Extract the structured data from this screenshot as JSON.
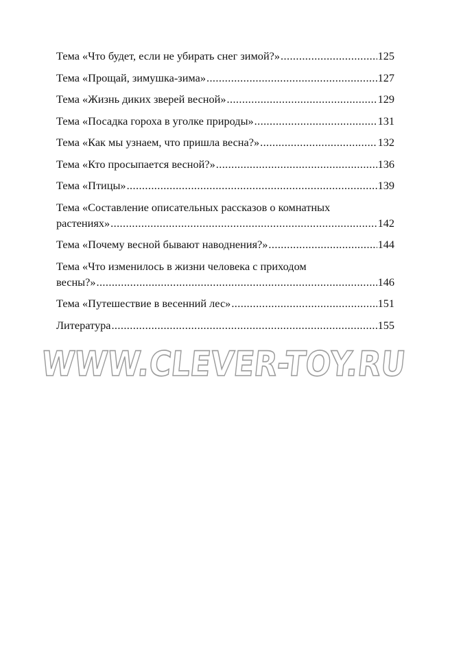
{
  "toc": [
    {
      "lines": [
        "Тема «Что будет, если не убирать снег зимой?» "
      ],
      "page": "125"
    },
    {
      "lines": [
        "Тема «Прощай, зимушка-зима»"
      ],
      "page": "127"
    },
    {
      "lines": [
        "Тема «Жизнь диких зверей весной»"
      ],
      "page": "129"
    },
    {
      "lines": [
        "Тема «Посадка гороха в уголке природы» "
      ],
      "page": "131"
    },
    {
      "lines": [
        "Тема «Как мы узнаем, что пришла весна?»"
      ],
      "page": "132"
    },
    {
      "lines": [
        "Тема «Кто просыпается весной?» "
      ],
      "page": "136"
    },
    {
      "lines": [
        "Тема «Птицы» "
      ],
      "page": "139"
    },
    {
      "lines": [
        "Тема «Составление описательных рассказов о комнатных",
        "растениях» "
      ],
      "page": "142"
    },
    {
      "lines": [
        "Тема «Почему весной бывают наводнения?» "
      ],
      "page": "144"
    },
    {
      "lines": [
        "Тема «Что изменилось в жизни человека с приходом",
        "весны?» "
      ],
      "page": "146"
    },
    {
      "lines": [
        "Тема «Путешествие в весенний лес» "
      ],
      "page": "151"
    },
    {
      "lines": [
        "Литература"
      ],
      "page": "155"
    }
  ],
  "watermark": "WWW.CLEVER-TOY.RU"
}
